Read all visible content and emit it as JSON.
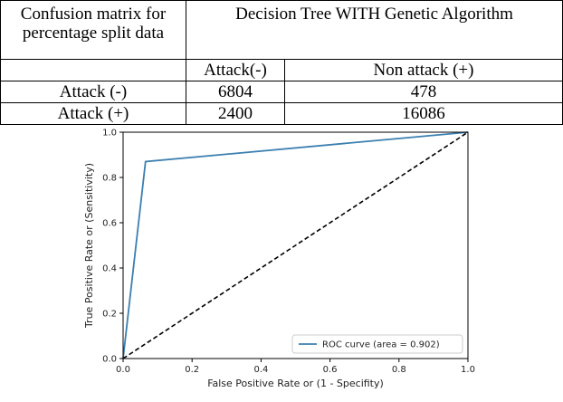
{
  "table": {
    "header_left": [
      "Confusion matrix for",
      "percentage split data"
    ],
    "header_right": "Decision Tree WITH Genetic Algorithm",
    "col_headers": [
      "Attack(-)",
      "Non attack (+)"
    ],
    "rows": [
      {
        "label": "Attack (-)",
        "values": [
          "6804",
          "478"
        ]
      },
      {
        "label": "Attack (+)",
        "values": [
          "2400",
          "16086"
        ]
      }
    ]
  },
  "chart_data": {
    "type": "line",
    "xlabel": "False Positive Rate or (1 - Specifity)",
    "ylabel": "True Positive Rate or (Sensitivity)",
    "xlim": [
      0,
      1
    ],
    "ylim": [
      0,
      1
    ],
    "xticks": [
      "0.0",
      "0.2",
      "0.4",
      "0.6",
      "0.8",
      "1.0"
    ],
    "yticks": [
      "0.0",
      "0.2",
      "0.4",
      "0.6",
      "0.8",
      "1.0"
    ],
    "grid": false,
    "legend_position": "lower-right",
    "series": [
      {
        "name": "ROC curve (area = 0.902)",
        "color": "#3b7fb0",
        "style": "solid",
        "x": [
          0.0,
          0.065,
          1.0
        ],
        "y": [
          0.0,
          0.87,
          1.0
        ]
      },
      {
        "color": "#000000",
        "style": "dashed",
        "x": [
          0.0,
          1.0
        ],
        "y": [
          0.0,
          1.0
        ]
      }
    ]
  }
}
